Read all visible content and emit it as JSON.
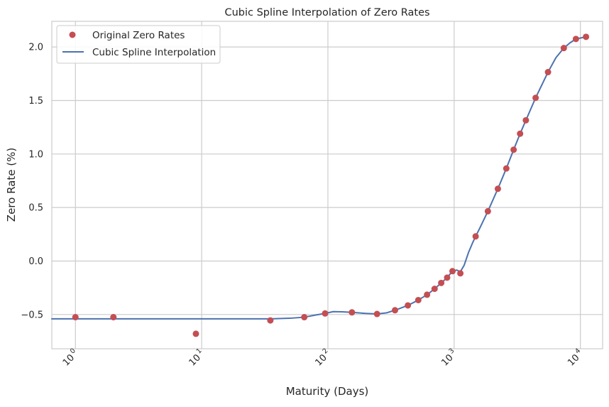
{
  "chart_data": {
    "type": "line",
    "title": "Cubic Spline Interpolation of Zero Rates",
    "xlabel": "Maturity (Days)",
    "ylabel": "Zero Rate (%)",
    "xscale": "log",
    "xlim": [
      0.65,
      15000
    ],
    "ylim": [
      -0.82,
      2.24
    ],
    "grid": true,
    "legend_position": "top-left",
    "x_ticks": [
      {
        "value": 1,
        "base": "10",
        "exp": "0"
      },
      {
        "value": 10,
        "base": "10",
        "exp": "1"
      },
      {
        "value": 100,
        "base": "10",
        "exp": "2"
      },
      {
        "value": 1000,
        "base": "10",
        "exp": "3"
      },
      {
        "value": 10000,
        "base": "10",
        "exp": "4"
      }
    ],
    "y_ticks": [
      {
        "value": -0.5,
        "label": "−0.5"
      },
      {
        "value": 0.0,
        "label": "0.0"
      },
      {
        "value": 0.5,
        "label": "0.5"
      },
      {
        "value": 1.0,
        "label": "1.0"
      },
      {
        "value": 1.5,
        "label": "1.5"
      },
      {
        "value": 2.0,
        "label": "2.0"
      }
    ],
    "series": [
      {
        "name": "Original Zero Rates",
        "kind": "points",
        "color": "#c44e52",
        "x": [
          1,
          2,
          9,
          35,
          65,
          95,
          155,
          245,
          340,
          430,
          520,
          610,
          700,
          790,
          880,
          970,
          1120,
          1480,
          1850,
          2220,
          2590,
          2960,
          3330,
          3700,
          4420,
          5540,
          7390,
          9220,
          11080
        ],
        "y": [
          -0.525,
          -0.525,
          -0.68,
          -0.555,
          -0.525,
          -0.49,
          -0.48,
          -0.495,
          -0.46,
          -0.415,
          -0.365,
          -0.315,
          -0.26,
          -0.205,
          -0.155,
          -0.095,
          -0.115,
          0.23,
          0.465,
          0.675,
          0.865,
          1.04,
          1.19,
          1.315,
          1.525,
          1.765,
          1.99,
          2.075,
          2.095
        ]
      },
      {
        "name": "Cubic Spline Interpolation",
        "kind": "line",
        "color": "#4c72b0",
        "x": [
          0.65,
          1,
          2,
          9,
          20,
          35,
          50,
          65,
          80,
          95,
          110,
          130,
          155,
          200,
          245,
          290,
          340,
          430,
          520,
          610,
          700,
          790,
          880,
          970,
          1050,
          1120,
          1200,
          1300,
          1400,
          1480,
          1600,
          1850,
          2220,
          2590,
          2960,
          3330,
          3700,
          4420,
          5540,
          6400,
          7390,
          8300,
          9220,
          11080
        ],
        "y": [
          -0.54,
          -0.54,
          -0.54,
          -0.54,
          -0.54,
          -0.54,
          -0.535,
          -0.525,
          -0.505,
          -0.49,
          -0.473,
          -0.475,
          -0.48,
          -0.49,
          -0.495,
          -0.485,
          -0.46,
          -0.415,
          -0.365,
          -0.315,
          -0.26,
          -0.205,
          -0.155,
          -0.095,
          -0.085,
          -0.1,
          -0.04,
          0.08,
          0.17,
          0.23,
          0.31,
          0.465,
          0.675,
          0.865,
          1.04,
          1.19,
          1.315,
          1.525,
          1.765,
          1.9,
          1.99,
          2.04,
          2.075,
          2.095
        ]
      }
    ]
  }
}
